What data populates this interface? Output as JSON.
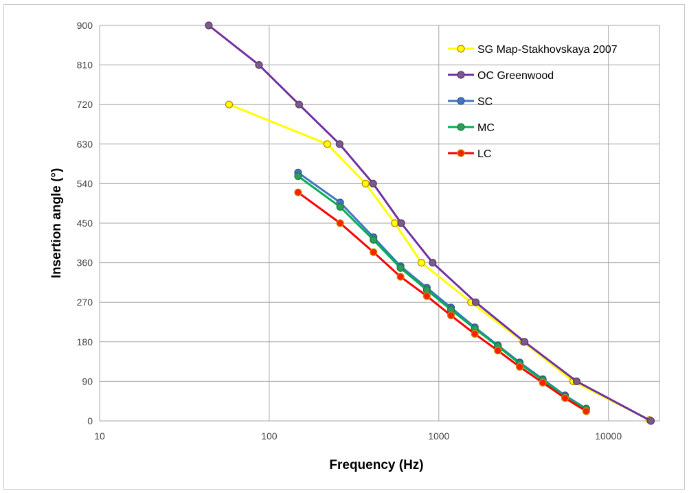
{
  "chart_data": {
    "type": "line",
    "xlabel": "Frequency (Hz)",
    "ylabel": "Insertion angle (°)",
    "x_scale": "log",
    "xlim": [
      10,
      20000
    ],
    "ylim": [
      0,
      900
    ],
    "x_ticks": [
      10,
      100,
      1000,
      10000
    ],
    "x_tick_labels": [
      "10",
      "100",
      "1000",
      "10000"
    ],
    "y_ticks": [
      0,
      90,
      180,
      270,
      360,
      450,
      540,
      630,
      720,
      810,
      900
    ],
    "y_tick_labels": [
      "0",
      "90",
      "180",
      "270",
      "360",
      "450",
      "540",
      "630",
      "720",
      "810",
      "900"
    ],
    "grid": true,
    "legend_position": "top-right",
    "series": [
      {
        "name": "SG Map-Stakhovskaya 2007",
        "color": "#ffff00",
        "marker_fill": "#ffff00",
        "marker_edge": "#c08000",
        "points": [
          [
            58,
            720
          ],
          [
            220,
            630
          ],
          [
            370,
            540
          ],
          [
            550,
            450
          ],
          [
            790,
            360
          ],
          [
            1550,
            270
          ],
          [
            3150,
            180
          ],
          [
            6200,
            90
          ],
          [
            17500,
            2
          ]
        ]
      },
      {
        "name": "OC Greenwood",
        "color": "#7030a0",
        "marker_fill": "#7a5a8a",
        "marker_edge": "#5a3a6a",
        "points": [
          [
            44,
            900
          ],
          [
            87,
            810
          ],
          [
            150,
            720
          ],
          [
            260,
            630
          ],
          [
            410,
            540
          ],
          [
            600,
            450
          ],
          [
            920,
            360
          ],
          [
            1650,
            270
          ],
          [
            3200,
            180
          ],
          [
            6500,
            90
          ],
          [
            17800,
            0
          ]
        ]
      },
      {
        "name": "SC",
        "color": "#4472c4",
        "marker_fill": "#4472c4",
        "marker_edge": "#2f5597",
        "points": [
          [
            148,
            565
          ],
          [
            262,
            497
          ],
          [
            412,
            418
          ],
          [
            595,
            352
          ],
          [
            850,
            303
          ],
          [
            1180,
            258
          ],
          [
            1630,
            213
          ],
          [
            2230,
            172
          ],
          [
            3000,
            133
          ],
          [
            4100,
            95
          ],
          [
            5550,
            58
          ],
          [
            7400,
            28
          ]
        ]
      },
      {
        "name": "MC",
        "color": "#00b050",
        "marker_fill": "#2e9c5a",
        "marker_edge": "#1e7a40",
        "points": [
          [
            148,
            557
          ],
          [
            262,
            487
          ],
          [
            412,
            412
          ],
          [
            595,
            348
          ],
          [
            850,
            298
          ],
          [
            1180,
            253
          ],
          [
            1630,
            210
          ],
          [
            2230,
            170
          ],
          [
            3000,
            130
          ],
          [
            4100,
            93
          ],
          [
            5550,
            55
          ],
          [
            7400,
            27
          ]
        ]
      },
      {
        "name": "LC",
        "color": "#ff0000",
        "marker_fill": "#ff2000",
        "marker_edge": "#c09000",
        "points": [
          [
            148,
            520
          ],
          [
            262,
            450
          ],
          [
            412,
            384
          ],
          [
            595,
            328
          ],
          [
            850,
            284
          ],
          [
            1180,
            240
          ],
          [
            1630,
            198
          ],
          [
            2230,
            160
          ],
          [
            3000,
            123
          ],
          [
            4100,
            87
          ],
          [
            5550,
            52
          ],
          [
            7400,
            22
          ]
        ]
      }
    ]
  }
}
